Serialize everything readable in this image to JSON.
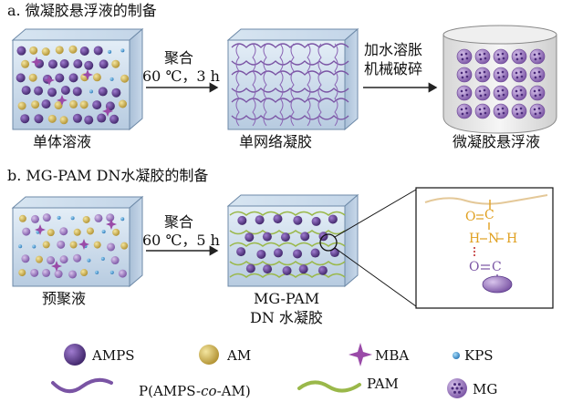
{
  "section_a": {
    "title": "a. 微凝胶悬浮液的制备",
    "step1_line1": "聚合",
    "step1_line2": "60 ℃，3 h",
    "step2_line1": "加水溶胀",
    "step2_line2": "机械破碎",
    "caption_monomer": "单体溶液",
    "caption_single_network": "单网络凝胶",
    "caption_microgel": "微凝胶悬浮液"
  },
  "section_b": {
    "title": "b. MG-PAM DN水凝胶的制备",
    "step_line1": "聚合",
    "step_line2": "60 ℃，5 h",
    "caption_prepolymer": "预聚液",
    "caption_gel_line1": "MG-PAM",
    "caption_gel_line2": "DN 水凝胶",
    "inset": {
      "c1": "C",
      "o1": "O",
      "h1": "H",
      "n": "N",
      "h2": "H",
      "o2": "O",
      "c2": "C"
    }
  },
  "legend": {
    "ampstext": "AMPS",
    "amtext": "AM",
    "mbatext": "MBA",
    "kpstext": "KPS",
    "pamps_prefix": "P(AMPS-",
    "pamps_italic": "co",
    "pamps_suffix": "-AM)",
    "pamtext": "PAM",
    "mgtext": "MG"
  },
  "colors": {
    "amps": "#5a3a8a",
    "am": "#d8c060",
    "mba": "#9a4aa8",
    "kps": "#5aa6d8",
    "pamps_chain": "#7a54a4",
    "pam_chain": "#9ab84a",
    "mg": "#a884c8",
    "box_face": "#c8d8ea",
    "hbond_accent": "#e0a020",
    "hbond_dash": "#c03030"
  }
}
